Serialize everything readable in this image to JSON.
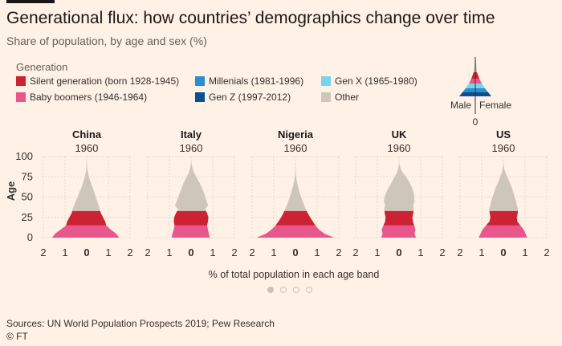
{
  "title": "Generational flux: how countries’ demographics change over time",
  "subtitle": "Share of population, by age and sex (%)",
  "legend_title": "Generation",
  "legend": [
    {
      "label": "Silent generation (born 1928-1945)",
      "color": "#CC2233"
    },
    {
      "label": "Baby boomers (1946-1964)",
      "color": "#E8578C"
    },
    {
      "label": "Millenials (1981-1996)",
      "color": "#2A8FCF"
    },
    {
      "label": "Gen Z (1997-2012)",
      "color": "#0D4E8C"
    },
    {
      "label": "Gen X (1965-1980)",
      "color": "#75D5EA"
    },
    {
      "label": "Other",
      "color": "#CEC6B9"
    }
  ],
  "key_labels": {
    "male": "Male",
    "female": "Female",
    "zero": "0"
  },
  "xlabel": "% of total population in each age band",
  "source": "Sources: UN World Population Prospects 2019; Pew Research",
  "credit": "© FT",
  "carousel": {
    "count": 4,
    "active": 0
  },
  "chart_data": {
    "type": "area",
    "subtype": "population-pyramid",
    "ylabel": "Age",
    "yticks": [
      0,
      25,
      50,
      75,
      100
    ],
    "ylim": [
      0,
      100
    ],
    "xticks": [
      2,
      1,
      0,
      1,
      2
    ],
    "xlim": [
      -2,
      2
    ],
    "year": "1960",
    "generation_age_bands_1960": {
      "Baby boomers (1946-1964)": [
        0,
        14
      ],
      "Silent generation (born 1928-1945)": [
        15,
        32
      ],
      "Other": [
        33,
        100
      ]
    },
    "panels": [
      {
        "country": "China",
        "year": "1960",
        "ages": [
          0,
          5,
          10,
          15,
          20,
          25,
          30,
          35,
          40,
          45,
          50,
          55,
          60,
          65,
          70,
          75,
          80,
          85,
          90
        ],
        "male": [
          1.6,
          1.45,
          1.2,
          0.95,
          0.9,
          0.8,
          0.7,
          0.65,
          0.58,
          0.5,
          0.42,
          0.35,
          0.27,
          0.2,
          0.14,
          0.09,
          0.05,
          0.02,
          0.01
        ],
        "female": [
          1.5,
          1.35,
          1.1,
          0.9,
          0.85,
          0.75,
          0.66,
          0.6,
          0.55,
          0.48,
          0.42,
          0.36,
          0.3,
          0.23,
          0.16,
          0.1,
          0.06,
          0.03,
          0.01
        ]
      },
      {
        "country": "Italy",
        "year": "1960",
        "ages": [
          0,
          5,
          10,
          15,
          20,
          25,
          30,
          35,
          40,
          45,
          50,
          55,
          60,
          65,
          70,
          75,
          80,
          85,
          90
        ],
        "male": [
          0.9,
          0.86,
          0.8,
          0.76,
          0.8,
          0.78,
          0.7,
          0.6,
          0.74,
          0.66,
          0.6,
          0.52,
          0.45,
          0.38,
          0.3,
          0.2,
          0.11,
          0.05,
          0.02
        ],
        "female": [
          0.86,
          0.82,
          0.78,
          0.74,
          0.78,
          0.8,
          0.74,
          0.66,
          0.78,
          0.72,
          0.66,
          0.6,
          0.52,
          0.44,
          0.34,
          0.24,
          0.14,
          0.07,
          0.03
        ]
      },
      {
        "country": "Nigeria",
        "year": "1960",
        "ages": [
          0,
          5,
          10,
          15,
          20,
          25,
          30,
          35,
          40,
          45,
          50,
          55,
          60,
          65,
          70,
          75,
          80,
          85
        ],
        "male": [
          1.8,
          1.35,
          1.1,
          0.92,
          0.78,
          0.66,
          0.56,
          0.48,
          0.4,
          0.33,
          0.26,
          0.2,
          0.15,
          0.1,
          0.06,
          0.03,
          0.015,
          0.005
        ],
        "female": [
          1.78,
          1.33,
          1.08,
          0.92,
          0.8,
          0.68,
          0.57,
          0.48,
          0.4,
          0.33,
          0.26,
          0.2,
          0.15,
          0.1,
          0.06,
          0.03,
          0.015,
          0.005
        ]
      },
      {
        "country": "UK",
        "year": "1960",
        "ages": [
          0,
          5,
          10,
          15,
          20,
          25,
          30,
          35,
          40,
          45,
          50,
          55,
          60,
          65,
          70,
          75,
          80,
          85,
          90
        ],
        "male": [
          0.82,
          0.76,
          0.8,
          0.72,
          0.64,
          0.62,
          0.66,
          0.68,
          0.64,
          0.7,
          0.66,
          0.6,
          0.52,
          0.4,
          0.3,
          0.2,
          0.1,
          0.04,
          0.01
        ],
        "female": [
          0.78,
          0.72,
          0.76,
          0.7,
          0.64,
          0.62,
          0.66,
          0.68,
          0.66,
          0.72,
          0.7,
          0.68,
          0.62,
          0.54,
          0.44,
          0.32,
          0.18,
          0.08,
          0.02
        ]
      },
      {
        "country": "US",
        "year": "1960",
        "ages": [
          0,
          5,
          10,
          15,
          20,
          25,
          30,
          35,
          40,
          45,
          50,
          55,
          60,
          65,
          70,
          75,
          80,
          85,
          90
        ],
        "male": [
          1.14,
          1.05,
          0.96,
          0.8,
          0.64,
          0.6,
          0.63,
          0.66,
          0.6,
          0.56,
          0.5,
          0.44,
          0.38,
          0.3,
          0.22,
          0.15,
          0.08,
          0.03,
          0.01
        ],
        "female": [
          1.1,
          1.02,
          0.93,
          0.78,
          0.64,
          0.62,
          0.66,
          0.68,
          0.62,
          0.58,
          0.52,
          0.47,
          0.41,
          0.34,
          0.26,
          0.18,
          0.1,
          0.04,
          0.01
        ]
      }
    ]
  }
}
